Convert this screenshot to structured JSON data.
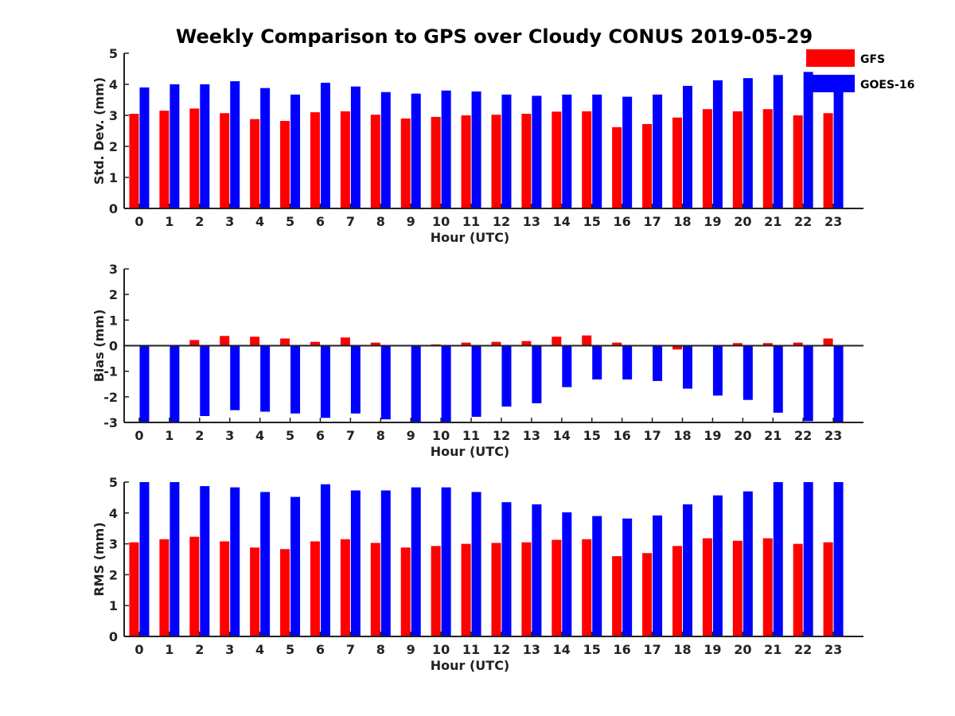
{
  "chart_data": {
    "title": "Weekly Comparison to GPS over Cloudy CONUS 2019-05-29",
    "legend": {
      "placement": "top-right",
      "entries": [
        {
          "name": "GFS",
          "color": "#ff0000"
        },
        {
          "name": "GOES-16",
          "color": "#0000ff"
        }
      ]
    },
    "panels": [
      {
        "type": "bar",
        "xlabel": "Hour (UTC)",
        "ylabel": "Std. Dev. (mm)",
        "ylim": [
          0,
          5
        ],
        "yticks": [
          "0",
          "1",
          "2",
          "3",
          "4",
          "5"
        ],
        "categories": [
          "0",
          "1",
          "2",
          "3",
          "4",
          "5",
          "6",
          "7",
          "8",
          "9",
          "10",
          "11",
          "12",
          "13",
          "14",
          "15",
          "16",
          "17",
          "18",
          "19",
          "20",
          "21",
          "22",
          "23"
        ],
        "series": [
          {
            "name": "GFS",
            "color": "#ff0000",
            "values": [
              3.05,
              3.15,
              3.22,
              3.07,
              2.88,
              2.82,
              3.1,
              3.13,
              3.02,
              2.9,
              2.95,
              3.0,
              3.02,
              3.05,
              3.12,
              3.13,
              2.62,
              2.72,
              2.93,
              3.2,
              3.13,
              3.2,
              3.0,
              3.07
            ]
          },
          {
            "name": "GOES-16",
            "color": "#0000ff",
            "values": [
              3.9,
              4.0,
              4.0,
              4.1,
              3.88,
              3.67,
              4.05,
              3.93,
              3.75,
              3.7,
              3.8,
              3.77,
              3.67,
              3.63,
              3.67,
              3.67,
              3.6,
              3.67,
              3.95,
              4.13,
              4.2,
              4.3,
              4.4,
              3.8
            ]
          }
        ]
      },
      {
        "type": "bar",
        "xlabel": "Hour (UTC)",
        "ylabel": "Bias (mm)",
        "ylim": [
          -3,
          3
        ],
        "yticks": [
          "-3",
          "-2",
          "-1",
          "0",
          "1",
          "2",
          "3"
        ],
        "categories": [
          "0",
          "1",
          "2",
          "3",
          "4",
          "5",
          "6",
          "7",
          "8",
          "9",
          "10",
          "11",
          "12",
          "13",
          "14",
          "15",
          "16",
          "17",
          "18",
          "19",
          "20",
          "21",
          "22",
          "23"
        ],
        "series": [
          {
            "name": "GFS",
            "color": "#ff0000",
            "values": [
              0.0,
              0.0,
              0.22,
              0.38,
              0.35,
              0.28,
              0.15,
              0.32,
              0.12,
              0.0,
              0.05,
              0.12,
              0.15,
              0.18,
              0.35,
              0.4,
              0.12,
              0.0,
              -0.15,
              0.0,
              0.1,
              0.1,
              0.12,
              0.28
            ]
          },
          {
            "name": "GOES-16",
            "color": "#0000ff",
            "values": [
              -3.0,
              -3.0,
              -2.75,
              -2.52,
              -2.58,
              -2.65,
              -2.82,
              -2.65,
              -2.88,
              -3.0,
              -3.0,
              -2.78,
              -2.38,
              -2.25,
              -1.62,
              -1.32,
              -1.32,
              -1.38,
              -1.68,
              -1.95,
              -2.12,
              -2.62,
              -2.95,
              -3.0
            ]
          }
        ]
      },
      {
        "type": "bar",
        "xlabel": "Hour (UTC)",
        "ylabel": "RMS (mm)",
        "ylim": [
          0,
          5
        ],
        "yticks": [
          "0",
          "1",
          "2",
          "3",
          "4",
          "5"
        ],
        "categories": [
          "0",
          "1",
          "2",
          "3",
          "4",
          "5",
          "6",
          "7",
          "8",
          "9",
          "10",
          "11",
          "12",
          "13",
          "14",
          "15",
          "16",
          "17",
          "18",
          "19",
          "20",
          "21",
          "22",
          "23"
        ],
        "series": [
          {
            "name": "GFS",
            "color": "#ff0000",
            "values": [
              3.05,
              3.15,
              3.23,
              3.08,
              2.88,
              2.83,
              3.08,
              3.15,
              3.03,
              2.88,
              2.93,
              3.0,
              3.03,
              3.05,
              3.13,
              3.15,
              2.6,
              2.7,
              2.93,
              3.18,
              3.1,
              3.18,
              3.0,
              3.05
            ]
          },
          {
            "name": "GOES-16",
            "color": "#0000ff",
            "values": [
              5.0,
              5.0,
              4.87,
              4.83,
              4.68,
              4.52,
              4.93,
              4.73,
              4.73,
              4.83,
              4.83,
              4.68,
              4.35,
              4.28,
              4.02,
              3.9,
              3.82,
              3.92,
              4.28,
              4.57,
              4.7,
              5.0,
              5.0,
              5.0
            ]
          }
        ]
      }
    ]
  }
}
